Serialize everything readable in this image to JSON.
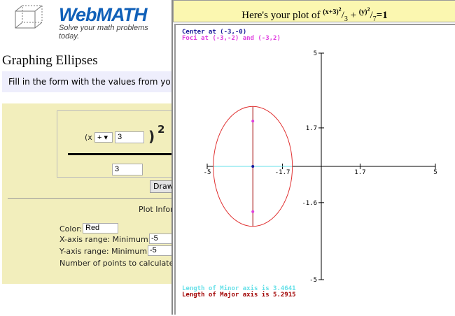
{
  "logo": {
    "title": "WebMATH",
    "subtitle": "Solve your math problems today."
  },
  "page_title": "Graphing Ellipses",
  "intro": "Fill in the form with the values from yo",
  "form": {
    "x_prefix": "(x",
    "sign": "+ ▾",
    "x_value": "3",
    "close_paren": ")",
    "exponent": "2",
    "denominator": "3",
    "draw_button": "Draw",
    "plot_info": "Plot Infor",
    "color_label": "Color:",
    "color_value": "Red",
    "xrange_label": "X-axis range: Minimum:",
    "xmin": "-5",
    "yrange_label": "Y-axis range: Minimum:",
    "ymin": "-5",
    "points_label": "Number of points to calculate a"
  },
  "plot": {
    "header_prefix": "Here's your plot of",
    "eq_x": "(x+3)",
    "eq_x_den": "3",
    "eq_plus": "+",
    "eq_y": "(y)",
    "eq_y_den": "7",
    "eq_rhs": "=1",
    "sq": "2",
    "center_text": "Center at (-3,-0)",
    "foci_text": "Foci at (-3,-2) and (-3,2)",
    "minor_text": "Length of Minor axis is 3.4641",
    "major_text": "Length of Major axis is 5.2915",
    "colors": {
      "center": "#1a1a9a",
      "foci": "#e040e0",
      "minor": "#66e0e8",
      "major": "#a00000",
      "curve": "#e03030"
    },
    "chart_data": {
      "type": "line",
      "equation": "(x+3)^2/3 + y^2/7 = 1",
      "center": [
        -3,
        0
      ],
      "foci": [
        [
          -3,
          -2
        ],
        [
          -3,
          2
        ]
      ],
      "semi_x": 1.7321,
      "semi_y": 2.6458,
      "xlim": [
        -5,
        5
      ],
      "ylim": [
        -5,
        5
      ],
      "x_ticks": [
        "-5",
        "-1.7",
        "1.7",
        "5"
      ],
      "y_ticks": [
        "5",
        "1.7",
        "-1.6",
        "-5"
      ],
      "x_tick_values": [
        -5,
        -1.7,
        1.7,
        5
      ],
      "y_tick_values": [
        5,
        1.7,
        -1.6,
        -5
      ]
    }
  }
}
